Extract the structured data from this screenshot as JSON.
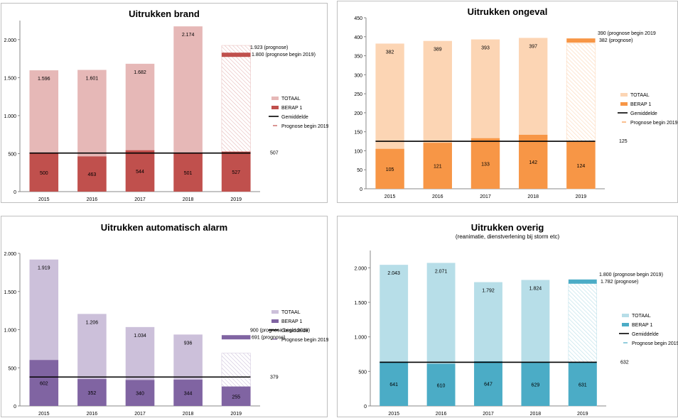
{
  "chart_data": [
    {
      "type": "bar",
      "title": "Uitrukken brand",
      "subtitle": "",
      "categories": [
        "2015",
        "2016",
        "2017",
        "2018",
        "2019"
      ],
      "ylim": [
        0,
        2250
      ],
      "yticks": [
        0,
        500,
        1000,
        1500,
        2000
      ],
      "ytick_labels": [
        "0",
        "500",
        "1.000",
        "1.500",
        "2.000"
      ],
      "series": [
        {
          "name": "TOTAAL",
          "values": [
            1596,
            1601,
            1682,
            2174,
            1923
          ],
          "labels": [
            "1.596",
            "1.601",
            "1.682",
            "2.174",
            ""
          ]
        },
        {
          "name": "BERAP 1",
          "values": [
            500,
            463,
            544,
            501,
            527
          ],
          "labels": [
            "500",
            "463",
            "544",
            "501",
            "527"
          ]
        },
        {
          "name": "Gemiddelde",
          "value": 507,
          "label": "507"
        },
        {
          "name": "Prognose begin 2019",
          "value": 1800
        }
      ],
      "annotations": [
        "1.923 (prognose)",
        "1.800 (prognose begin 2019)"
      ],
      "colors": {
        "total": "#e6b8b7",
        "berap": "#c0504d",
        "marker": "#c0504d"
      }
    },
    {
      "type": "bar",
      "title": "Uitrukken ongeval",
      "subtitle": "",
      "categories": [
        "2015",
        "2016",
        "2017",
        "2018",
        "2019"
      ],
      "ylim": [
        0,
        450
      ],
      "yticks": [
        0,
        50,
        100,
        150,
        200,
        250,
        300,
        350,
        400,
        450
      ],
      "ytick_labels": [
        "0",
        "50",
        "100",
        "150",
        "200",
        "250",
        "300",
        "350",
        "400",
        "450"
      ],
      "series": [
        {
          "name": "TOTAAL",
          "values": [
            382,
            389,
            393,
            397,
            382
          ],
          "labels": [
            "382",
            "389",
            "393",
            "397",
            ""
          ]
        },
        {
          "name": "BERAP 1",
          "values": [
            105,
            121,
            133,
            142,
            124
          ],
          "labels": [
            "105",
            "121",
            "133",
            "142",
            "124"
          ]
        },
        {
          "name": "Gemiddelde",
          "value": 125,
          "label": "125"
        },
        {
          "name": "Prognose begin 2019",
          "value": 390
        }
      ],
      "annotations": [
        "390 (prognose begin 2019",
        "382 (prognose)"
      ],
      "colors": {
        "total": "#fcd5b4",
        "berap": "#f79646",
        "marker": "#f79646"
      }
    },
    {
      "type": "bar",
      "title": "Uitrukken automatisch alarm",
      "subtitle": "",
      "categories": [
        "2015",
        "2016",
        "2017",
        "2018",
        "2019"
      ],
      "ylim": [
        0,
        2000
      ],
      "yticks": [
        0,
        500,
        1000,
        1500,
        2000
      ],
      "ytick_labels": [
        "0",
        "500",
        "1.000",
        "1.500",
        "2.000"
      ],
      "series": [
        {
          "name": "TOTAAL",
          "values": [
            1919,
            1206,
            1034,
            936,
            691
          ],
          "labels": [
            "1.919",
            "1.206",
            "1.034",
            "936",
            ""
          ]
        },
        {
          "name": "BERAP 1",
          "values": [
            602,
            352,
            340,
            344,
            255
          ],
          "labels": [
            "602",
            "352",
            "340",
            "344",
            "255"
          ]
        },
        {
          "name": "Gemiddelde",
          "value": 379,
          "label": "379"
        },
        {
          "name": "Prognose begin 2019",
          "value": 900
        }
      ],
      "annotations": [
        "900 (prognose begin 2019)",
        "691 (prognose)"
      ],
      "colors": {
        "total": "#ccc0da",
        "berap": "#8064a2",
        "marker": "#8064a2"
      }
    },
    {
      "type": "bar",
      "title": "Uitrukken overig",
      "subtitle": "(reanimatie, dienstverlening bij storm etc)",
      "categories": [
        "2015",
        "2016",
        "2017",
        "2018",
        "2019"
      ],
      "ylim": [
        0,
        2250
      ],
      "yticks": [
        0,
        500,
        1000,
        1500,
        2000
      ],
      "ytick_labels": [
        "0",
        "500",
        "1.000",
        "1.500",
        "2.000"
      ],
      "series": [
        {
          "name": "TOTAAL",
          "values": [
            2043,
            2071,
            1792,
            1824,
            1782
          ],
          "labels": [
            "2.043",
            "2.071",
            "1.792",
            "1.824",
            ""
          ]
        },
        {
          "name": "BERAP 1",
          "values": [
            641,
            610,
            647,
            629,
            631
          ],
          "labels": [
            "641",
            "610",
            "647",
            "629",
            "631"
          ]
        },
        {
          "name": "Gemiddelde",
          "value": 632,
          "label": "632"
        },
        {
          "name": "Prognose begin 2019",
          "value": 1800
        }
      ],
      "annotations": [
        "1.800 (prognose begin 2019)",
        "1.782 (prognose)"
      ],
      "colors": {
        "total": "#b7dee8",
        "berap": "#4bacc6",
        "marker": "#4bacc6"
      }
    }
  ]
}
